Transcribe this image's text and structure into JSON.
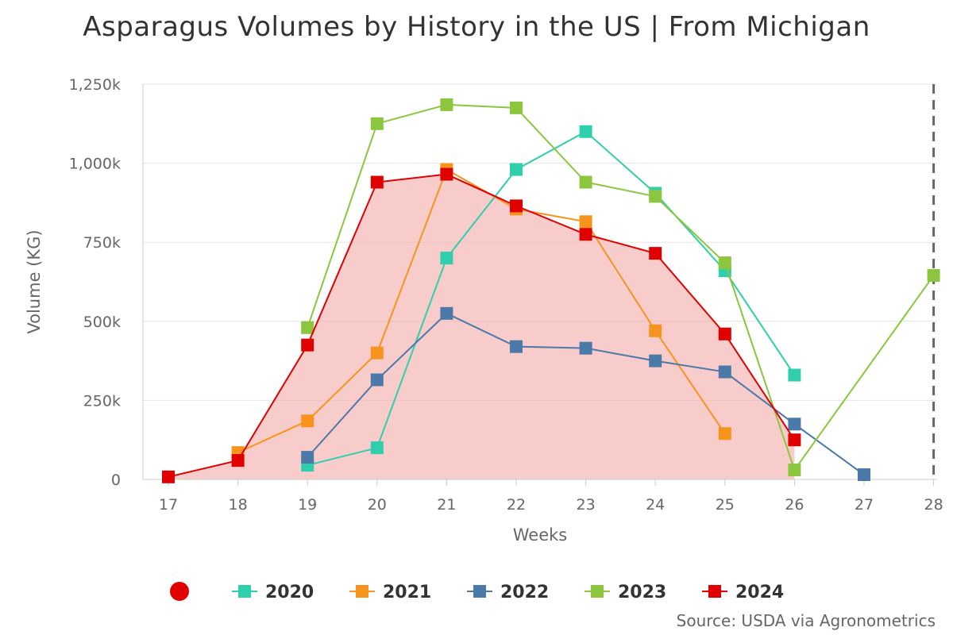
{
  "chart_data": {
    "type": "line",
    "title": "Asparagus Volumes by History in the US | From Michigan",
    "xlabel": "Weeks",
    "ylabel": "Volume (KG)",
    "x_ticks": [
      "17",
      "18",
      "19",
      "20",
      "21",
      "22",
      "23",
      "24",
      "25",
      "26",
      "27",
      "28"
    ],
    "xlim": [
      17,
      28
    ],
    "ylim": [
      0,
      1250000
    ],
    "y_ticks": [
      {
        "value": 0,
        "label": "0"
      },
      {
        "value": 250000,
        "label": "250k"
      },
      {
        "value": 500000,
        "label": "500k"
      },
      {
        "value": 750000,
        "label": "750k"
      },
      {
        "value": 1000000,
        "label": "1,000k"
      },
      {
        "value": 1250000,
        "label": "1,250k"
      }
    ],
    "grid": true,
    "legend_position": "bottom-center",
    "current_week_marker": 28,
    "series": [
      {
        "name": "2020",
        "color": "#2ecfaa",
        "area": false,
        "x": [
          19,
          20,
          21,
          22,
          23,
          24,
          25,
          26
        ],
        "values": [
          45000,
          100000,
          700000,
          980000,
          1100000,
          905000,
          660000,
          330000
        ]
      },
      {
        "name": "2021",
        "color": "#f7941d",
        "area": false,
        "x": [
          18,
          19,
          20,
          21,
          22,
          23,
          24,
          25
        ],
        "values": [
          85000,
          185000,
          400000,
          980000,
          855000,
          815000,
          470000,
          145000
        ]
      },
      {
        "name": "2022",
        "color": "#4b79a8",
        "area": false,
        "x": [
          19,
          20,
          21,
          22,
          23,
          24,
          25,
          26,
          27
        ],
        "values": [
          70000,
          315000,
          525000,
          420000,
          415000,
          375000,
          340000,
          175000,
          15000
        ]
      },
      {
        "name": "2023",
        "color": "#8cc63f",
        "area": false,
        "x": [
          19,
          20,
          21,
          22,
          23,
          24,
          25,
          26,
          28
        ],
        "values": [
          480000,
          1125000,
          1185000,
          1175000,
          940000,
          895000,
          685000,
          30000,
          645000
        ]
      },
      {
        "name": "2024",
        "color": "#e00000",
        "area": true,
        "x": [
          17,
          18,
          19,
          20,
          21,
          22,
          23,
          24,
          25,
          26
        ],
        "values": [
          8000,
          60000,
          425000,
          940000,
          965000,
          865000,
          775000,
          715000,
          460000,
          125000
        ]
      }
    ],
    "area_fill": "#f4a3a3",
    "legend_extra_marker_color": "#e00000"
  },
  "source": "Source: USDA via Agronometrics"
}
